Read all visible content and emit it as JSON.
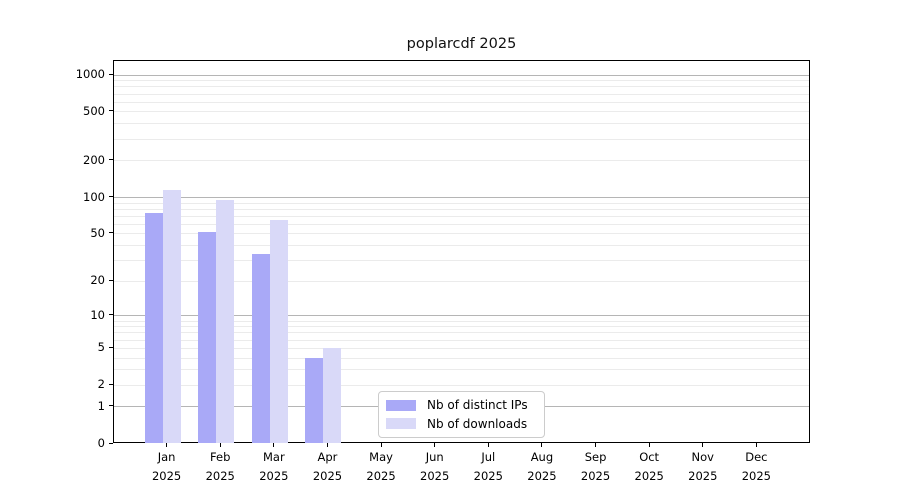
{
  "page": {
    "background": "#ffffff"
  },
  "chart_data": {
    "type": "bar",
    "title": "poplarcdf 2025",
    "categories": [
      "Jan 2025",
      "Feb 2025",
      "Mar 2025",
      "Apr 2025",
      "May 2025",
      "Jun 2025",
      "Jul 2025",
      "Aug 2025",
      "Sep 2025",
      "Oct 2025",
      "Nov 2025",
      "Dec 2025"
    ],
    "series": [
      {
        "name": "Nb of distinct IPs",
        "color": "#a9a9f7",
        "values": [
          74,
          52,
          34,
          4,
          0,
          0,
          0,
          0,
          0,
          0,
          0,
          0
        ]
      },
      {
        "name": "Nb of downloads",
        "color": "#d9d9f8",
        "values": [
          115,
          95,
          65,
          5,
          0,
          0,
          0,
          0,
          0,
          0,
          0,
          0
        ]
      }
    ],
    "yscale": "log1p",
    "yticks": [
      0,
      1,
      2,
      5,
      10,
      20,
      50,
      100,
      200,
      500,
      1000
    ],
    "grid_major_values": [
      1,
      10,
      100,
      1000
    ],
    "ylim": [
      0,
      1300
    ],
    "xlabel": "",
    "ylabel": "",
    "grid": true,
    "legend_position": "lower-center-inside"
  },
  "style": {
    "grid_major": "#b5b5b5",
    "grid_minor": "#ebebeb",
    "axis_color": "#000000",
    "text_color": "#000000",
    "legend_border": "#cccccc",
    "legend_bg": "#ffffff"
  }
}
